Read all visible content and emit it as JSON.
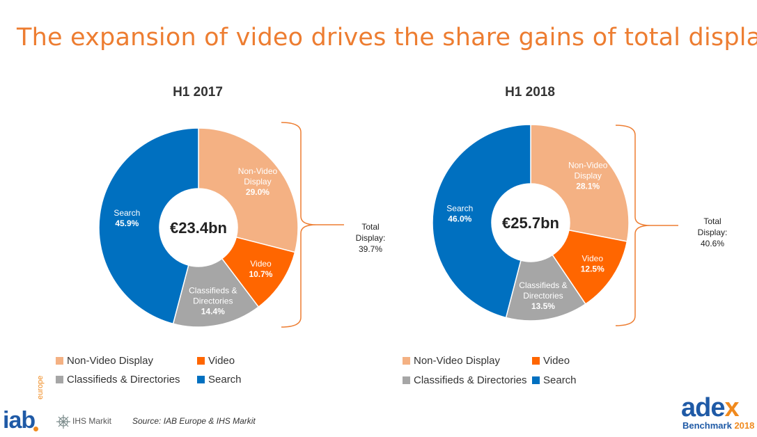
{
  "page": {
    "title": "The expansion of video drives the share gains of total display",
    "source": "Source: IAB Europe & IHS Markit"
  },
  "colors": {
    "title": "#ED7D31",
    "non_video_display": "#F4B183",
    "video": "#FF6600",
    "classifieds": "#A6A6A6",
    "search": "#0070C0",
    "brace": "#ED7D31"
  },
  "chart_data": [
    {
      "type": "pie",
      "title": "H1 2017",
      "center_label": "€23.4bn",
      "slices": [
        {
          "name_lines": [
            "Non-Video",
            "Display"
          ],
          "value_label": "29.0%",
          "value": 29.0
        },
        {
          "name_lines": [
            "Video"
          ],
          "value_label": "10.7%",
          "value": 10.7
        },
        {
          "name_lines": [
            "Classifieds &",
            "Directories"
          ],
          "value_label": "14.4%",
          "value": 14.4
        },
        {
          "name_lines": [
            "Search"
          ],
          "value_label": "45.9%",
          "value": 45.9
        }
      ],
      "total_display": {
        "lines": [
          "Total",
          "Display:",
          "39.7%"
        ],
        "value": 39.7
      },
      "legend": [
        "Non-Video Display",
        "Video",
        "Classifieds & Directories",
        "Search"
      ]
    },
    {
      "type": "pie",
      "title": "H1 2018",
      "center_label": "€25.7bn",
      "slices": [
        {
          "name_lines": [
            "Non-Video",
            "Display"
          ],
          "value_label": "28.1%",
          "value": 28.1
        },
        {
          "name_lines": [
            "Video"
          ],
          "value_label": "12.5%",
          "value": 12.5
        },
        {
          "name_lines": [
            "Classifieds &",
            "Directories"
          ],
          "value_label": "13.5%",
          "value": 13.5
        },
        {
          "name_lines": [
            "Search"
          ],
          "value_label": "46.0%",
          "value": 46.0
        }
      ],
      "total_display": {
        "lines": [
          "Total",
          "Display:",
          "40.6%"
        ],
        "value": 40.6
      },
      "legend": [
        "Non-Video Display",
        "Video",
        "Classifieds & Directories",
        "Search"
      ]
    }
  ],
  "logos": {
    "iab": "iab",
    "iab_sub": "europe",
    "ihs": "IHS Markit",
    "adex_main": "ade",
    "adex_x": "x",
    "bench": "Benchmark",
    "bench_year": "2018"
  }
}
